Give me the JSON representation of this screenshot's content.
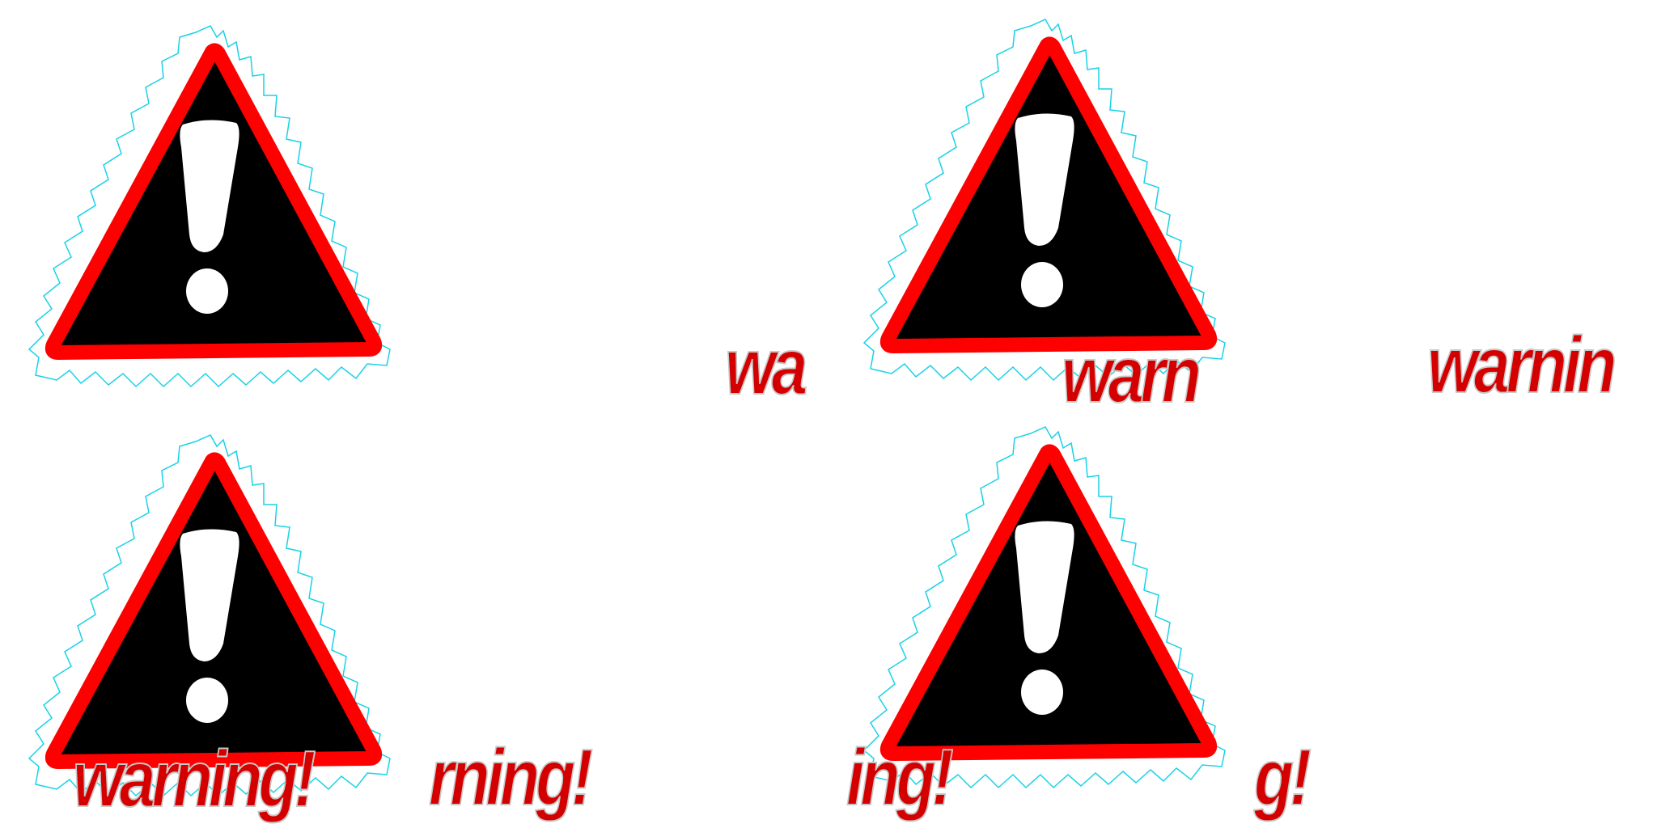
{
  "colors": {
    "triangle_fill": "#000000",
    "triangle_border": "#ff0000",
    "exclamation": "#ffffff",
    "halo_outline": "#19d2e6",
    "text_fill": "#d40000",
    "text_outline": "#c8c8c8"
  },
  "icons": {
    "sign": "warning-triangle-icon"
  },
  "text_fragments": {
    "wa": "wa",
    "warn": "warn",
    "warnin": "warnin",
    "warning_full": "warning!",
    "rning": "rning!",
    "ing": "ing!",
    "g": "g!"
  }
}
